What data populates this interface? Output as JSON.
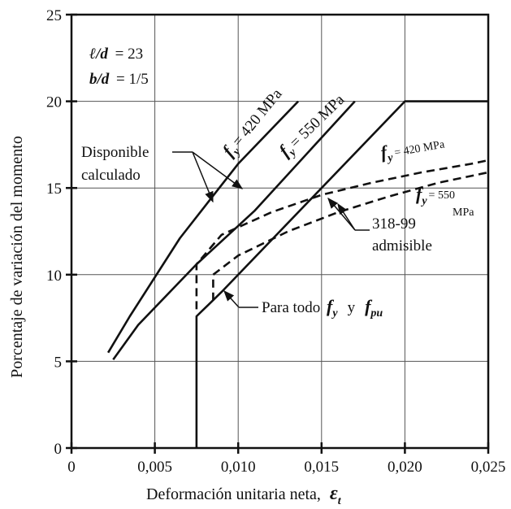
{
  "chart_data": {
    "type": "line",
    "title": "",
    "xlabel": "Deformación unitaria neta,",
    "xlabel_symbol": "ε",
    "xlabel_sub": "t",
    "ylabel": "Porcentaje de variación del momento",
    "xlim": [
      0,
      0.025
    ],
    "ylim": [
      0,
      25
    ],
    "x_ticks": [
      0,
      0.005,
      0.01,
      0.015,
      0.02,
      0.025
    ],
    "x_tick_labels": [
      "0",
      "0,005",
      "0,010",
      "0,015",
      "0,020",
      "0,025"
    ],
    "y_ticks": [
      0,
      5,
      10,
      15,
      20,
      25
    ],
    "y_tick_labels": [
      "0",
      "5",
      "10",
      "15",
      "20",
      "25"
    ],
    "grid": true,
    "series": [
      {
        "style": "solid",
        "x": [
          0.0022,
          0.0035,
          0.0065,
          0.01,
          0.0136
        ],
        "y": [
          5.5,
          7.6,
          12.1,
          16.4,
          20.0
        ]
      },
      {
        "style": "solid",
        "x": [
          0.0025,
          0.004,
          0.0075,
          0.011,
          0.017
        ],
        "y": [
          5.1,
          7.1,
          10.6,
          13.7,
          20.0
        ]
      },
      {
        "style": "solid",
        "x": [
          0.0075,
          0.0075,
          0.0075,
          0.009,
          0.02,
          0.025
        ],
        "y": [
          0.0,
          7.6,
          7.6,
          9.0,
          20.0,
          20.0
        ]
      },
      {
        "style": "dashed",
        "x": [
          0.0075,
          0.0075,
          0.009,
          0.012,
          0.015,
          0.018,
          0.021,
          0.024,
          0.025
        ],
        "y": [
          8.0,
          10.6,
          12.3,
          13.6,
          14.6,
          15.3,
          15.9,
          16.4,
          16.6
        ]
      },
      {
        "style": "dashed",
        "x": [
          0.0085,
          0.0085,
          0.01,
          0.013,
          0.016,
          0.019,
          0.022,
          0.025
        ],
        "y": [
          8.5,
          10.0,
          11.1,
          12.5,
          13.6,
          14.5,
          15.3,
          15.9
        ]
      }
    ],
    "annotations": {
      "ld_label": "ℓ/d",
      "ld_value": "= 23",
      "bd_label": "b/d",
      "bd_value": "= 1/5",
      "fy": "f",
      "fy_sub": "y",
      "fpu_sub": "pu",
      "fy420_value": "= 420 MPa",
      "fy550_value": "= 550 MPa",
      "fy420_dash_value": "= 420 MPa",
      "fy550_dash_value": "= 550",
      "fy550_dash_unit": "MPa",
      "disponible_line1": "Disponible",
      "disponible_line2": "calculado",
      "admisible_line1": "318-99",
      "admisible_line2": "admisible",
      "para_todo": "Para todo",
      "y_word": "y"
    }
  }
}
